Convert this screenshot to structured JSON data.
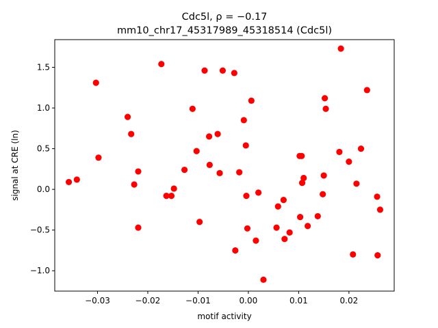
{
  "chart_data": {
    "type": "scatter",
    "title_line1": "Cdc5l, ρ = −0.17",
    "title_line2": "mm10_chr17_45317989_45318514 (Cdc5l)",
    "xlabel": "motif activity",
    "ylabel": "signal at CRE (ln)",
    "xlim": [
      -0.0385,
      0.029
    ],
    "ylim": [
      -1.25,
      1.84
    ],
    "xticks": [
      -0.03,
      -0.02,
      -0.01,
      0.0,
      0.01,
      0.02
    ],
    "xtick_labels": [
      "−0.03",
      "−0.02",
      "−0.01",
      "0.00",
      "0.01",
      "0.02"
    ],
    "yticks": [
      -1.0,
      -0.5,
      0.0,
      0.5,
      1.0,
      1.5
    ],
    "ytick_labels": [
      "−1.0",
      "−0.5",
      "0.0",
      "0.5",
      "1.0",
      "1.5"
    ],
    "grid": false,
    "marker_color": "#ff0000",
    "points": [
      [
        -0.0357,
        0.09
      ],
      [
        -0.0341,
        0.12
      ],
      [
        -0.0303,
        1.31
      ],
      [
        -0.0298,
        0.39
      ],
      [
        -0.024,
        0.89
      ],
      [
        -0.0233,
        0.68
      ],
      [
        -0.0227,
        0.06
      ],
      [
        -0.0219,
        0.22
      ],
      [
        -0.0219,
        -0.47
      ],
      [
        -0.0173,
        1.54
      ],
      [
        -0.0163,
        -0.08
      ],
      [
        -0.0153,
        -0.08
      ],
      [
        -0.0148,
        0.01
      ],
      [
        -0.0127,
        0.24
      ],
      [
        -0.0111,
        0.99
      ],
      [
        -0.0103,
        0.47
      ],
      [
        -0.0097,
        -0.4
      ],
      [
        -0.0087,
        1.46
      ],
      [
        -0.0078,
        0.65
      ],
      [
        -0.0077,
        0.3
      ],
      [
        -0.0061,
        0.68
      ],
      [
        -0.0057,
        0.2
      ],
      [
        -0.0051,
        1.46
      ],
      [
        -0.0028,
        1.43
      ],
      [
        -0.0026,
        -0.75
      ],
      [
        -0.0018,
        0.21
      ],
      [
        -0.0009,
        0.85
      ],
      [
        -0.0005,
        0.54
      ],
      [
        -0.0004,
        -0.08
      ],
      [
        -0.0002,
        -0.48
      ],
      [
        0.0006,
        1.09
      ],
      [
        0.0015,
        -0.63
      ],
      [
        0.002,
        -0.04
      ],
      [
        0.003,
        -1.11
      ],
      [
        0.0056,
        -0.47
      ],
      [
        0.0059,
        -0.21
      ],
      [
        0.007,
        -0.13
      ],
      [
        0.0072,
        -0.61
      ],
      [
        0.0082,
        -0.53
      ],
      [
        0.0102,
        0.41
      ],
      [
        0.0103,
        -0.34
      ],
      [
        0.0106,
        0.41
      ],
      [
        0.0107,
        0.08
      ],
      [
        0.011,
        0.14
      ],
      [
        0.0118,
        -0.45
      ],
      [
        0.0138,
        -0.33
      ],
      [
        0.0148,
        -0.06
      ],
      [
        0.015,
        0.17
      ],
      [
        0.0152,
        1.12
      ],
      [
        0.0154,
        0.99
      ],
      [
        0.0181,
        0.46
      ],
      [
        0.0184,
        1.73
      ],
      [
        0.02,
        0.34
      ],
      [
        0.0208,
        -0.8
      ],
      [
        0.0215,
        0.07
      ],
      [
        0.0224,
        0.5
      ],
      [
        0.0236,
        1.22
      ],
      [
        0.0256,
        -0.09
      ],
      [
        0.0257,
        -0.81
      ],
      [
        0.0262,
        -0.25
      ]
    ]
  }
}
